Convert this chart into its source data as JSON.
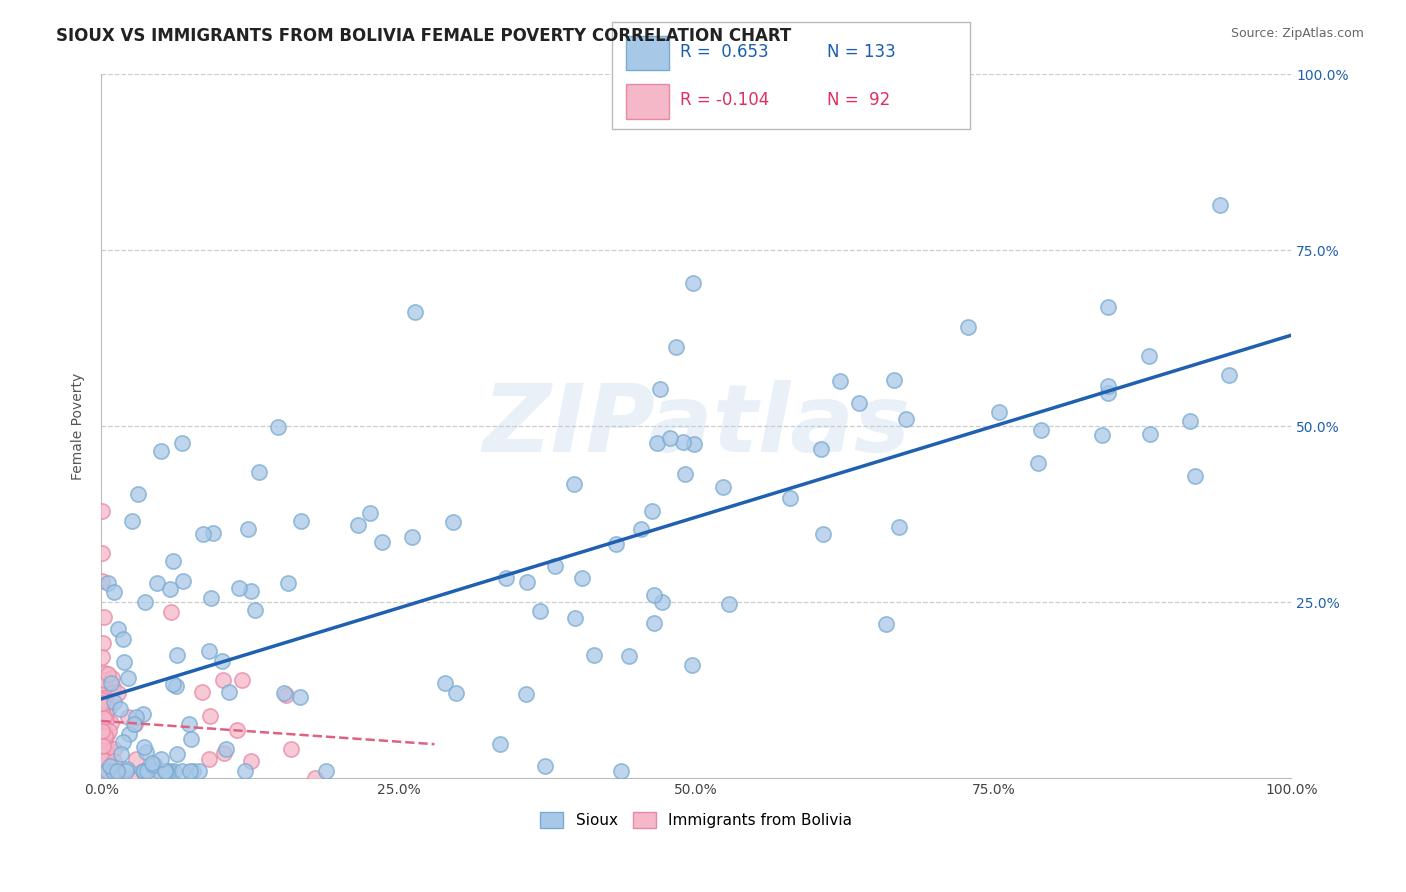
{
  "title": "SIOUX VS IMMIGRANTS FROM BOLIVIA FEMALE POVERTY CORRELATION CHART",
  "source": "Source: ZipAtlas.com",
  "ylabel": "Female Poverty",
  "sioux_color": "#a8c8e8",
  "sioux_edge_color": "#7aaad0",
  "sioux_line_color": "#2060b0",
  "bolivia_color": "#f5b8c8",
  "bolivia_edge_color": "#e888a8",
  "bolivia_line_color": "#e06080",
  "background": "#ffffff",
  "grid_color": "#cccccc",
  "xlim": [
    0.0,
    1.0
  ],
  "ylim": [
    0.0,
    1.0
  ],
  "xticks": [
    0.0,
    0.25,
    0.5,
    0.75,
    1.0
  ],
  "xtick_labels": [
    "0.0%",
    "25.0%",
    "50.0%",
    "75.0%",
    "100.0%"
  ],
  "yticks": [
    0.25,
    0.5,
    0.75,
    1.0
  ],
  "ytick_labels": [
    "25.0%",
    "50.0%",
    "75.0%",
    "100.0%"
  ],
  "title_fontsize": 12,
  "axis_label_fontsize": 10,
  "tick_fontsize": 10,
  "legend_fontsize": 12,
  "watermark_text": "ZIPatlas",
  "legend_r1_val": "0.653",
  "legend_n1": "133",
  "legend_r2_val": "-0.104",
  "legend_n2": "92"
}
